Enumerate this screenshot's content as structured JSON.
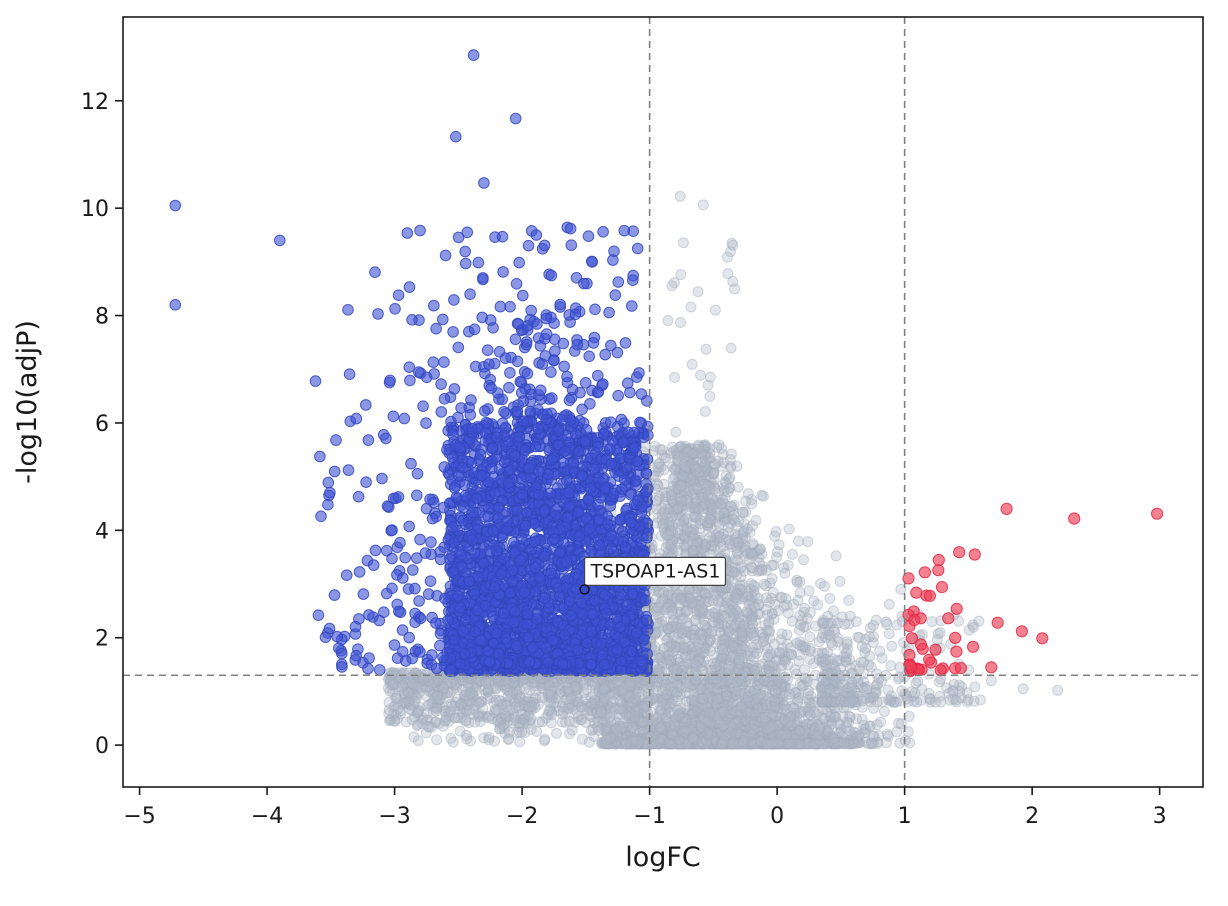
{
  "chart_data": {
    "type": "scatter",
    "subtype": "volcano-plot",
    "title": "",
    "xlabel": "logFC",
    "ylabel": "-log10(adjP)",
    "xlim": [
      -5.13,
      3.34
    ],
    "ylim": [
      -0.78,
      13.56
    ],
    "xticks": [
      -5,
      -4,
      -3,
      -2,
      -1,
      0,
      1,
      2,
      3
    ],
    "yticks": [
      0,
      2,
      4,
      6,
      8,
      10,
      12
    ],
    "grid": false,
    "legend": "none",
    "thresholds": {
      "logfc_cutoffs": [
        -1,
        1
      ],
      "significance_line": 1.301,
      "line_color": "#808080",
      "line_style": "dashed"
    },
    "annotation": {
      "label": "TSPOAP1-AS1",
      "point": [
        -1.51,
        2.9
      ],
      "box_color": "#ffffff",
      "box_border": "#444444"
    },
    "series": [
      {
        "name": "not-significant",
        "color": "#aeb8c6",
        "edge": "#9fabbb",
        "opacity": 0.35,
        "edge_opacity": 0.45,
        "radius": 5.0,
        "clouds": [
          {
            "type": "funnel",
            "n": 3400,
            "seed": 101,
            "y": {
              "kind": "pow",
              "min": 0.02,
              "max": 5.6,
              "k": 2.6
            },
            "x": {
              "mu0": -0.42,
              "slope": -0.05,
              "sigma0": 0.62,
              "sigmaSlope": -0.085,
              "min": -1.38,
              "max": 1.05
            }
          },
          {
            "type": "independent",
            "n": 850,
            "seed": 102,
            "x": {
              "kind": "uniform",
              "min": -3.05,
              "max": -1.0
            },
            "y": {
              "kind": "pow",
              "min": 1.35,
              "max": 0.4,
              "k": 1.6
            }
          },
          {
            "type": "independent",
            "n": 70,
            "seed": 103,
            "x": {
              "kind": "uniform",
              "min": -2.9,
              "max": -1.05
            },
            "y": {
              "kind": "uniform",
              "min": 0.05,
              "max": 0.45
            }
          },
          {
            "type": "independent",
            "n": 260,
            "seed": 104,
            "x": {
              "kind": "pow",
              "min": 0.35,
              "max": 1.6,
              "k": 2.0
            },
            "y": {
              "kind": "pow",
              "min": 0.8,
              "max": 2.45,
              "k": 2.2
            }
          },
          {
            "type": "independent",
            "n": 26,
            "seed": 105,
            "x": {
              "kind": "uniform",
              "min": -0.88,
              "max": -0.3
            },
            "y": {
              "kind": "uniform",
              "min": 5.7,
              "max": 9.4
            }
          },
          {
            "type": "points",
            "pts": [
              [
                -0.76,
                10.22
              ],
              [
                -0.58,
                10.06
              ],
              [
                1.93,
                1.05
              ],
              [
                2.2,
                1.02
              ],
              [
                1.68,
                1.2
              ],
              [
                0.62,
                2.3
              ],
              [
                0.88,
                2.62
              ],
              [
                0.97,
                2.9
              ]
            ]
          }
        ]
      },
      {
        "name": "down-regulated",
        "color": "#3d52d4",
        "edge": "#3347bb",
        "opacity": 0.6,
        "edge_opacity": 0.85,
        "radius": 5.3,
        "clouds": [
          {
            "type": "independent",
            "n": 2300,
            "seed": 201,
            "x": {
              "kind": "uniform",
              "min": -2.58,
              "max": -1.01
            },
            "y": {
              "kind": "pow",
              "min": 1.38,
              "max": 6.0,
              "k": 1.35
            }
          },
          {
            "type": "independent",
            "n": 500,
            "seed": 202,
            "x": {
              "kind": "normal",
              "mu": -1.85,
              "sigma": 0.55,
              "min": -3.45,
              "max": -1.01
            },
            "y": {
              "kind": "pow",
              "min": 1.5,
              "max": 8.2,
              "k": 2.0
            }
          },
          {
            "type": "independent",
            "n": 140,
            "seed": 203,
            "x": {
              "kind": "normal",
              "mu": -1.95,
              "sigma": 0.5,
              "min": -3.3,
              "max": -1.02
            },
            "y": {
              "kind": "pow",
              "min": 6.0,
              "max": 9.7,
              "k": 1.7
            }
          },
          {
            "type": "independent",
            "n": 90,
            "seed": 204,
            "x": {
              "kind": "uniform",
              "min": -3.6,
              "max": -2.55
            },
            "y": {
              "kind": "pow",
              "min": 1.4,
              "max": 6.5,
              "k": 1.8
            }
          },
          {
            "type": "points",
            "pts": [
              [
                -4.72,
                10.05
              ],
              [
                -4.72,
                8.2
              ],
              [
                -3.9,
                9.4
              ],
              [
                -2.38,
                12.85
              ],
              [
                -2.05,
                11.67
              ],
              [
                -2.52,
                11.33
              ],
              [
                -2.3,
                10.47
              ],
              [
                -1.62,
                9.62
              ],
              [
                -2.43,
                9.55
              ],
              [
                -1.95,
                9.3
              ],
              [
                -2.6,
                9.12
              ],
              [
                -1.45,
                9.0
              ],
              [
                -3.62,
                6.78
              ],
              [
                -3.3,
                6.08
              ],
              [
                -3.45,
                2.02
              ],
              [
                -3.28,
                2.35
              ],
              [
                -3.2,
                1.62
              ],
              [
                -3.02,
                2.92
              ]
            ]
          }
        ]
      },
      {
        "name": "up-regulated",
        "color": "#ee3e55",
        "edge": "#e02945",
        "opacity": 0.65,
        "edge_opacity": 0.85,
        "radius": 5.6,
        "clouds": [
          {
            "type": "independent",
            "n": 40,
            "seed": 301,
            "x": {
              "kind": "pow",
              "min": 1.03,
              "max": 1.62,
              "k": 1.7
            },
            "y": {
              "kind": "pow",
              "min": 1.38,
              "max": 3.6,
              "k": 2.0
            }
          },
          {
            "type": "points",
            "pts": [
              [
                1.8,
                4.4
              ],
              [
                2.33,
                4.22
              ],
              [
                2.98,
                4.31
              ],
              [
                1.73,
                2.28
              ],
              [
                1.92,
                2.12
              ],
              [
                2.08,
                1.99
              ],
              [
                1.68,
                1.45
              ],
              [
                1.55,
                3.55
              ]
            ]
          }
        ]
      }
    ]
  }
}
